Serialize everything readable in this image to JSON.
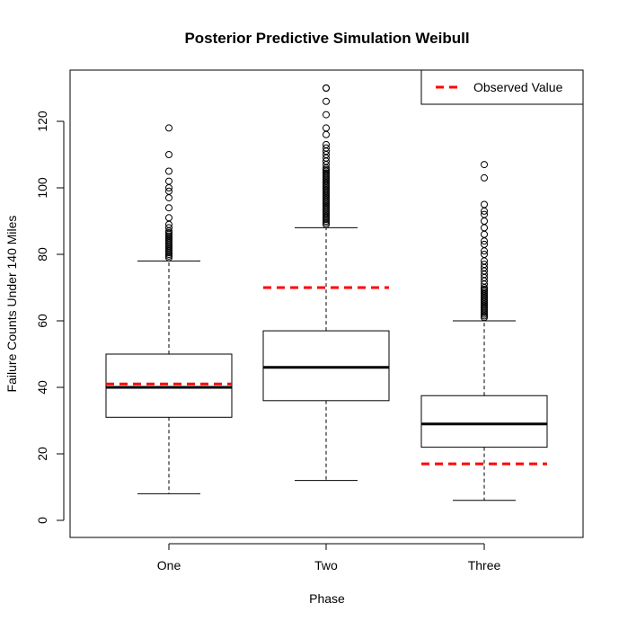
{
  "chart_data": {
    "type": "box",
    "title": "Posterior Predictive Simulation Weibull",
    "xlabel": "Phase",
    "ylabel": "Failure Counts Under 140 Miles",
    "ylim": [
      -5,
      132
    ],
    "yticks": [
      0,
      20,
      40,
      60,
      80,
      100,
      120
    ],
    "categories": [
      "One",
      "Two",
      "Three"
    ],
    "boxes": [
      {
        "category": "One",
        "whisker_low": 8,
        "q1": 31,
        "median": 40,
        "q3": 50,
        "whisker_high": 78,
        "outliers": [
          79,
          79.5,
          80,
          80.5,
          81,
          81.5,
          82,
          82.5,
          83,
          83.5,
          84,
          84.5,
          85,
          85.5,
          86,
          86.5,
          87,
          88,
          89,
          91,
          94,
          97,
          99,
          100,
          102,
          105,
          110,
          118
        ],
        "observed": 41
      },
      {
        "category": "Two",
        "whisker_low": 12,
        "q1": 36,
        "median": 46,
        "q3": 57,
        "whisker_high": 88,
        "outliers": [
          89,
          89.5,
          90,
          90.5,
          91,
          91.5,
          92,
          92.5,
          93,
          93.5,
          94,
          94.5,
          95,
          95.5,
          96,
          96.5,
          97,
          97.5,
          98,
          98.5,
          99,
          99.5,
          100,
          100.5,
          101,
          101.5,
          102,
          102.5,
          103,
          103.5,
          104,
          104.5,
          105,
          105.5,
          106,
          107,
          108,
          109,
          110,
          111,
          112,
          113,
          116,
          118,
          122,
          126,
          130,
          130
        ],
        "observed": 70
      },
      {
        "category": "Three",
        "whisker_low": 6,
        "q1": 22,
        "median": 29,
        "q3": 37.5,
        "whisker_high": 60,
        "outliers": [
          61,
          61.5,
          62,
          62.5,
          63,
          63.5,
          64,
          64.5,
          65,
          65.5,
          66,
          66.5,
          67,
          67.5,
          68,
          68.5,
          69,
          69.5,
          70,
          71,
          72,
          73,
          74,
          75,
          76,
          77,
          78,
          80,
          81,
          83,
          84,
          86,
          88,
          90,
          92,
          93,
          95,
          103,
          107
        ],
        "observed": 17
      }
    ],
    "legend": {
      "position": "top-right",
      "entries": [
        {
          "label": "Observed Value",
          "color": "#ff0000",
          "style": "dashed"
        }
      ]
    },
    "grid": false,
    "observed_color": "#ff0000"
  }
}
